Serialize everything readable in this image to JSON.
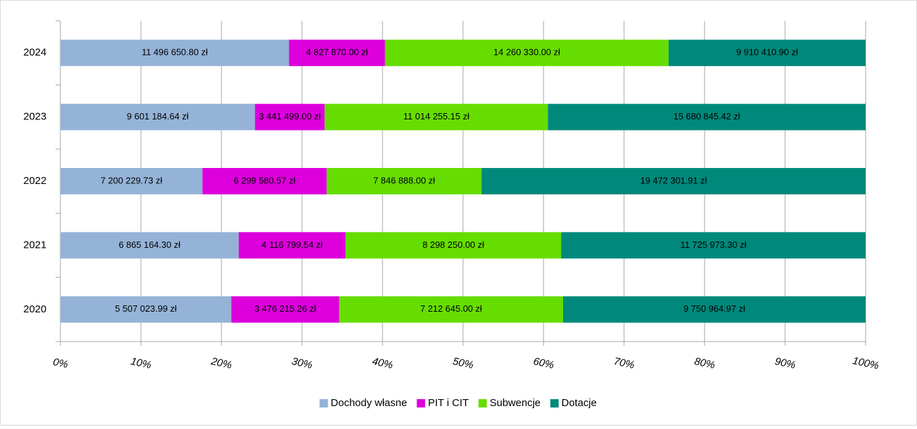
{
  "chart_data": {
    "type": "bar",
    "orientation": "horizontal",
    "stacking": "percent",
    "categories": [
      "2024",
      "2023",
      "2022",
      "2021",
      "2020"
    ],
    "series": [
      {
        "name": "Dochody własne",
        "color": "#95b3d7",
        "values": [
          11496650.8,
          9601184.64,
          7200229.73,
          6865164.3,
          5507023.99
        ],
        "value_labels": [
          "11 496 650.80 zł",
          "9 601 184.64 zł",
          "7 200 229.73 zł",
          "6 865 164.30 zł",
          "5 507 023.99 zł"
        ]
      },
      {
        "name": "PIT i CIT",
        "color": "#dd00dd",
        "values": [
          4827870.0,
          3441499.0,
          6299580.57,
          4116799.54,
          3476215.26
        ],
        "value_labels": [
          "4 827 870.00 zł",
          "3 441 499.00 zł",
          "6 299 580.57 zł",
          "4 116 799.54 zł",
          "3 476 215.26 zł"
        ]
      },
      {
        "name": "Subwencje",
        "color": "#66dd00",
        "values": [
          14260330.0,
          11014255.15,
          7846888.0,
          8298250.0,
          7212645.0
        ],
        "value_labels": [
          "14 260 330.00 zł",
          "11 014 255.15 zł",
          "7 846 888.00 zł",
          "8 298 250.00 zł",
          "7 212 645.00 zł"
        ]
      },
      {
        "name": "Dotacje",
        "color": "#00897b",
        "values": [
          9910410.9,
          15680845.42,
          19472301.91,
          11725973.3,
          9750964.97
        ],
        "value_labels": [
          "9 910 410.90 zł",
          "15 680 845.42 zł",
          "19 472 301.91 zł",
          "11 725 973.30 zł",
          "9 750 964.97 zł"
        ]
      }
    ],
    "xlim": [
      0,
      100
    ],
    "xticks": [
      {
        "value": 0,
        "label": "0%"
      },
      {
        "value": 10,
        "label": "10%"
      },
      {
        "value": 20,
        "label": "20%"
      },
      {
        "value": 30,
        "label": "30%"
      },
      {
        "value": 40,
        "label": "40%"
      },
      {
        "value": 50,
        "label": "50%"
      },
      {
        "value": 60,
        "label": "60%"
      },
      {
        "value": 70,
        "label": "70%"
      },
      {
        "value": 80,
        "label": "80%"
      },
      {
        "value": 90,
        "label": "90%"
      },
      {
        "value": 100,
        "label": "100%"
      }
    ],
    "grid": true,
    "legend": "bottom"
  }
}
